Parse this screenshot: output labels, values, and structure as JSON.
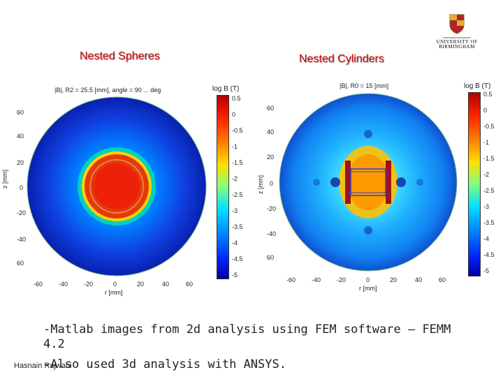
{
  "slide": {
    "logo_text_line1": "UNIVERSITY OF",
    "logo_text_line2": "BIRMINGHAM",
    "title_left": "Nested Spheres",
    "title_right": "Nested Cylinders",
    "bullet1": "-Matlab images from 2d analysis using FEM software – FEMM",
    "bullet1_cont": "4.2",
    "bullet2": "-Also used 3d analysis with ANSYS.",
    "footer": "Hasnain Rajwani"
  },
  "plots": {
    "left": {
      "title": "|B|, R2 = 25.5 [mm], angle = 90 ... deg",
      "colorbar_label": "log B (T)",
      "xlabel": "r [mm]",
      "ylabel": "z [mm]",
      "yticks": [
        "60",
        "40",
        "20",
        "0",
        "-20",
        "-40",
        "60"
      ],
      "xticks": [
        "-60",
        "-40",
        "-20",
        "0",
        "20",
        "40",
        "60"
      ],
      "cbticks": [
        "0.5",
        "0",
        "-0.5",
        "-1",
        "-1.5",
        "-2",
        "-2.5",
        "-3",
        "-3.5",
        "-4",
        "-4.5",
        "-5"
      ]
    },
    "right": {
      "title": "|B|, R0 = 15 [mm]",
      "colorbar_label": "log B (T)",
      "xlabel": "r [mm]",
      "ylabel": "z [mm]",
      "yticks": [
        "60",
        "40",
        "20",
        "0",
        "-20",
        "-40",
        "60"
      ],
      "xticks": [
        "-60",
        "-40",
        "-20",
        "0",
        "20",
        "40",
        "60"
      ],
      "cbticks": [
        "0.5",
        "0",
        "-0.5",
        "-1",
        "-1.5",
        "-2",
        "-2.5",
        "-3",
        "-3.5",
        "-4",
        "-4.5",
        "-5"
      ]
    }
  },
  "colors": {
    "title_red": "#cc0000",
    "field_red": "#e8200a",
    "field_blue": "#1030d0",
    "coil_dark": "#8a1020"
  }
}
